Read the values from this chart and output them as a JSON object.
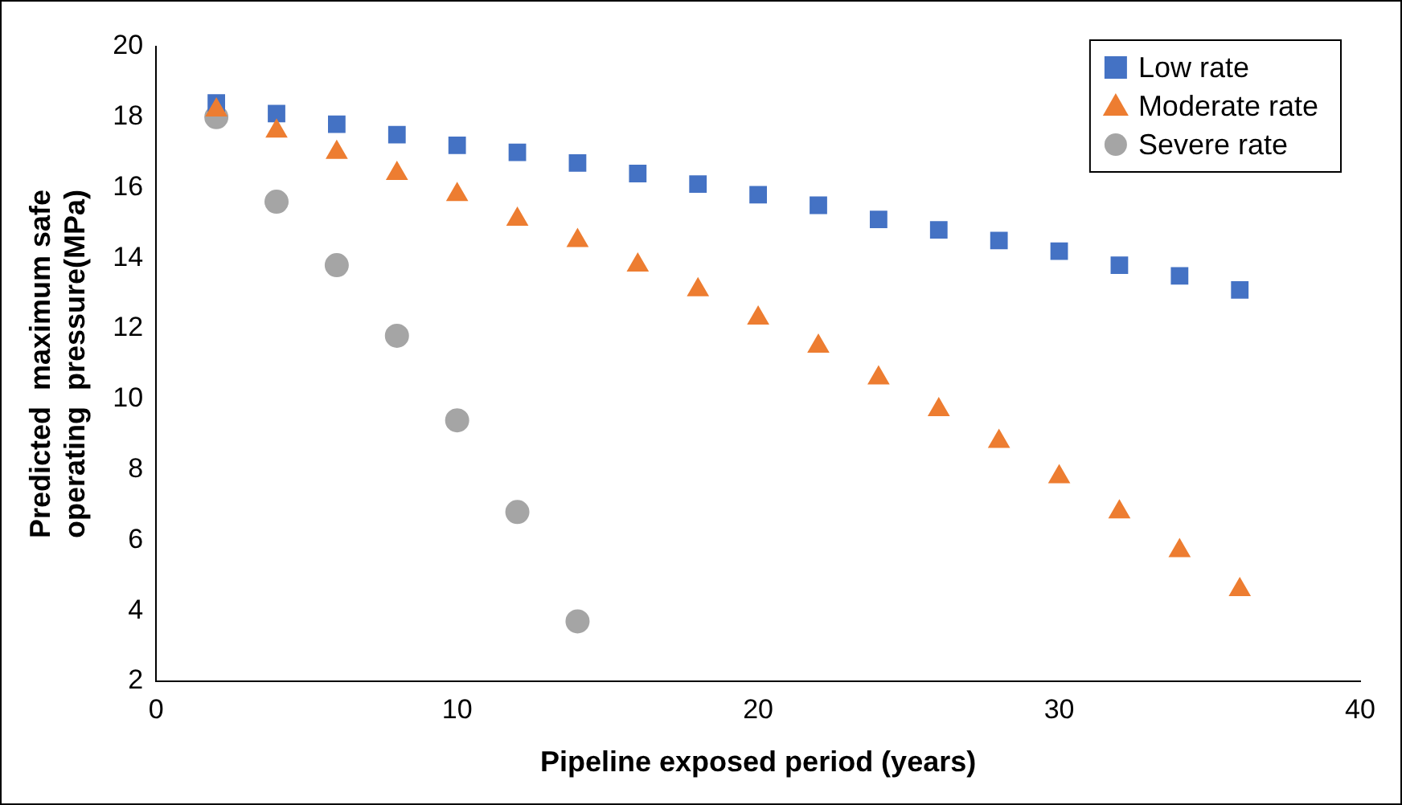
{
  "chart_data": {
    "type": "scatter",
    "xlabel": "Pipeline exposed period (years)",
    "ylabel": "Predicted  maximum safe operating  pressure(MPa)",
    "xlim": [
      0,
      40
    ],
    "xticks": [
      0,
      10,
      20,
      30,
      40
    ],
    "ylim": [
      2,
      20
    ],
    "yticks": [
      2,
      4,
      6,
      8,
      10,
      12,
      14,
      16,
      18,
      20
    ],
    "grid": false,
    "legend": "top right",
    "series": [
      {
        "name": "Low rate",
        "color": "#4472c4",
        "marker": "square",
        "x": [
          2,
          4,
          6,
          8,
          10,
          12,
          14,
          16,
          18,
          20,
          22,
          24,
          26,
          28,
          30,
          32,
          34,
          36
        ],
        "values": [
          18.4,
          18.1,
          17.8,
          17.5,
          17.2,
          17.0,
          16.7,
          16.4,
          16.1,
          15.8,
          15.5,
          15.1,
          14.8,
          14.5,
          14.2,
          13.8,
          13.5,
          13.1
        ]
      },
      {
        "name": "Moderate rate",
        "color": "#ed7d31",
        "marker": "triangle",
        "x": [
          2,
          4,
          6,
          8,
          10,
          12,
          14,
          16,
          18,
          20,
          22,
          24,
          26,
          28,
          30,
          32,
          34,
          36
        ],
        "values": [
          18.2,
          17.6,
          17.0,
          16.4,
          15.8,
          15.1,
          14.5,
          13.8,
          13.1,
          12.3,
          11.5,
          10.6,
          9.7,
          8.8,
          7.8,
          6.8,
          5.7,
          4.6
        ]
      },
      {
        "name": "Severe rate",
        "color": "#a5a5a5",
        "marker": "circle",
        "x": [
          2,
          4,
          6,
          8,
          10,
          12,
          14
        ],
        "values": [
          18.0,
          15.6,
          13.8,
          11.8,
          9.4,
          6.8,
          3.7
        ]
      }
    ]
  }
}
